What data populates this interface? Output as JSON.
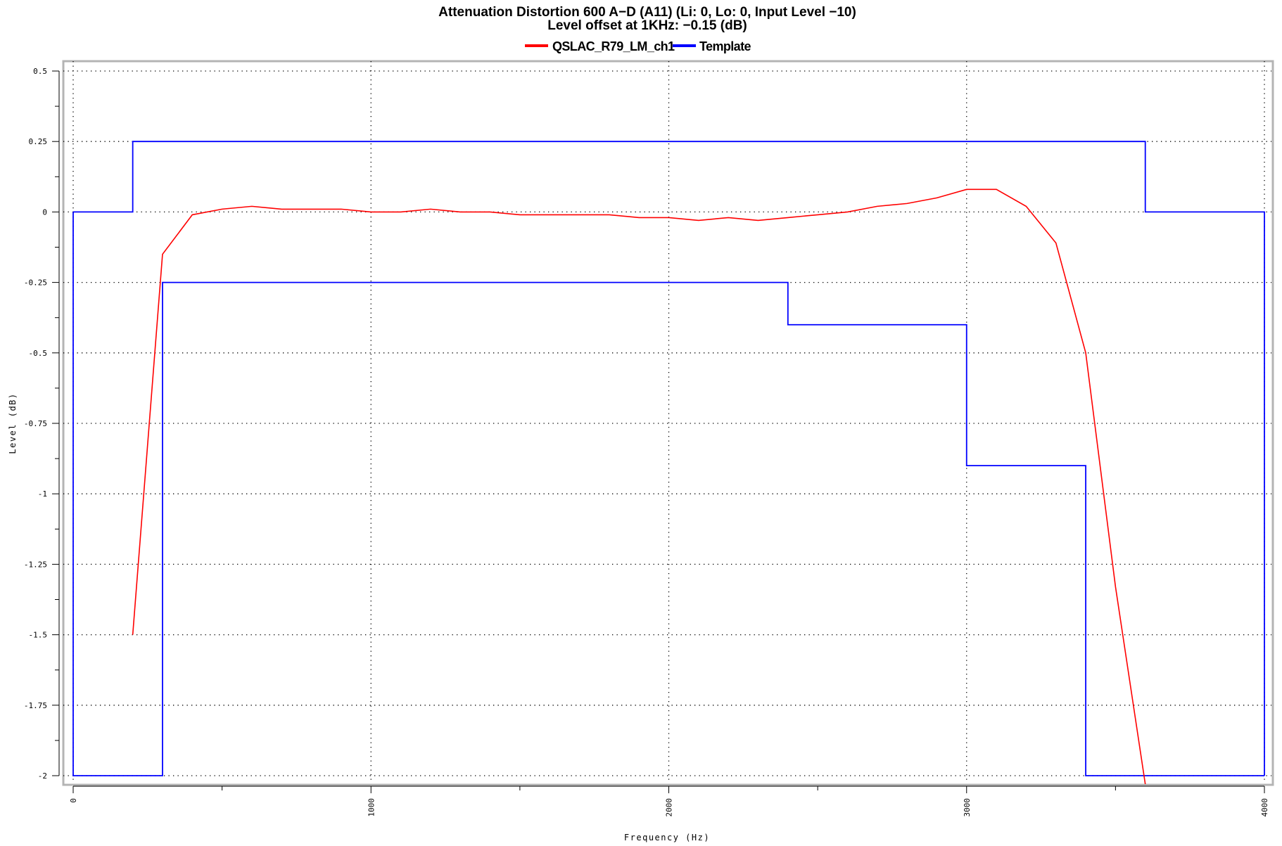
{
  "chart_data": {
    "type": "line",
    "title": "Attenuation Distortion 600 A−D (A11) (Li: 0, Lo: 0, Input Level −10)",
    "subtitle": "Level offset at 1KHz: −0.15 (dB)",
    "xlabel": "Frequency (Hz)",
    "ylabel": "Level (dB)",
    "xlim": [
      0,
      4000
    ],
    "ylim": [
      -2,
      0.5
    ],
    "x_ticks": [
      0,
      1000,
      2000,
      3000,
      4000
    ],
    "x_tick_labels": [
      "0",
      "1000",
      "2000",
      "3000",
      "4000"
    ],
    "y_ticks": [
      0.5,
      0.25,
      0,
      -0.25,
      -0.5,
      -0.75,
      -1,
      -1.25,
      -1.5,
      -1.75,
      -2
    ],
    "y_tick_labels": [
      "0.5",
      "0.25",
      "0",
      "-0.25",
      "-0.5",
      "-0.75",
      "-1",
      "-1.25",
      "-1.5",
      "-1.75",
      "-2"
    ],
    "grid": true,
    "legend_position": "top-center",
    "series": [
      {
        "name": "QSLAC_R79_LM_ch1",
        "color": "#ff0000",
        "x": [
          200,
          300,
          400,
          500,
          600,
          700,
          800,
          900,
          1000,
          1100,
          1200,
          1300,
          1400,
          1500,
          1600,
          1700,
          1800,
          1900,
          2000,
          2100,
          2200,
          2300,
          2400,
          2500,
          2600,
          2700,
          2800,
          2900,
          3000,
          3100,
          3200,
          3300,
          3400,
          3500,
          3600
        ],
        "y": [
          -1.5,
          -0.15,
          -0.01,
          0.01,
          0.02,
          0.01,
          0.01,
          0.01,
          0.0,
          0.0,
          0.01,
          0.0,
          0.0,
          -0.01,
          -0.01,
          -0.01,
          -0.01,
          -0.02,
          -0.02,
          -0.03,
          -0.02,
          -0.03,
          -0.02,
          -0.01,
          0.0,
          0.02,
          0.03,
          0.05,
          0.08,
          0.08,
          0.02,
          -0.11,
          -0.5,
          -1.33,
          -2.03
        ]
      },
      {
        "name": "Template",
        "color": "#0000ff",
        "step_paths": [
          {
            "x": [
              0,
              200,
              200,
              3600,
              3600,
              4000,
              4000
            ],
            "y": [
              0,
              0,
              0.25,
              0.25,
              0,
              0,
              -2
            ]
          },
          {
            "x": [
              0,
              0,
              300,
              300,
              2400,
              2400,
              3000,
              3000,
              3400,
              3400,
              4000
            ],
            "y": [
              0,
              -2,
              -2,
              -0.25,
              -0.25,
              -0.4,
              -0.4,
              -0.9,
              -0.9,
              -2,
              -2
            ]
          }
        ]
      }
    ]
  }
}
